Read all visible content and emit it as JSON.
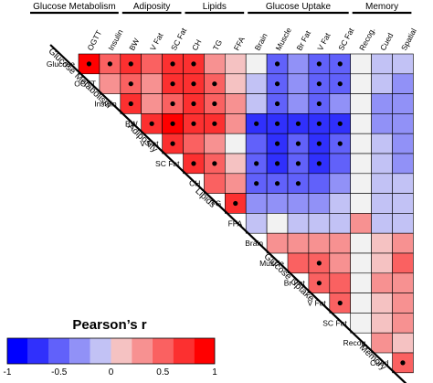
{
  "chart_data": {
    "type": "heatmap",
    "variables": [
      "Glucose",
      "OGTT",
      "Insulin",
      "BW",
      "V Fat",
      "SC Fat",
      "CH",
      "TG",
      "FFA",
      "Brain",
      "Muscle",
      "Br Fat",
      "V Fat",
      "SC Fat",
      "Recog.",
      "Cued",
      "Spatial"
    ],
    "groups": [
      {
        "name": "Glucose Metabolism",
        "vars": [
          "Glucose",
          "OGTT",
          "Insulin"
        ]
      },
      {
        "name": "Adiposity",
        "vars": [
          "BW",
          "V Fat",
          "SC Fat"
        ]
      },
      {
        "name": "Lipids",
        "vars": [
          "CH",
          "TG",
          "FFA"
        ]
      },
      {
        "name": "Glucose Uptake",
        "vars": [
          "Brain",
          "Muscle",
          "Br Fat",
          "V Fat",
          "SC Fat"
        ]
      },
      {
        "name": "Memory",
        "vars": [
          "Recog.",
          "Cued",
          "Spatial"
        ]
      }
    ],
    "cells": [
      {
        "row": "Glucose",
        "col": "OGTT",
        "r": 0.9,
        "sig": true
      },
      {
        "row": "Glucose",
        "col": "Insulin",
        "r": 0.5,
        "sig": true
      },
      {
        "row": "Glucose",
        "col": "BW",
        "r": 0.8,
        "sig": true
      },
      {
        "row": "Glucose",
        "col": "V Fat",
        "r": 0.5,
        "sig": false
      },
      {
        "row": "Glucose",
        "col": "SC Fat",
        "r": 0.8,
        "sig": true
      },
      {
        "row": "Glucose",
        "col": "CH",
        "r": 0.8,
        "sig": true
      },
      {
        "row": "Glucose",
        "col": "TG",
        "r": 0.3,
        "sig": false
      },
      {
        "row": "Glucose",
        "col": "FFA",
        "r": 0.2,
        "sig": false
      },
      {
        "row": "Glucose",
        "col": "Brain",
        "r": 0.0,
        "sig": false
      },
      {
        "row": "Glucose",
        "col": "Muscle",
        "r": -0.6,
        "sig": true
      },
      {
        "row": "Glucose",
        "col": "Br Fat",
        "r": -0.3,
        "sig": false
      },
      {
        "row": "Glucose",
        "col": "V Fat",
        "r": -0.6,
        "sig": true
      },
      {
        "row": "Glucose",
        "col": "SC Fat",
        "r": -0.6,
        "sig": true
      },
      {
        "row": "Glucose",
        "col": "Recog.",
        "r": 0.0,
        "sig": false
      },
      {
        "row": "Glucose",
        "col": "Cued",
        "r": -0.2,
        "sig": false
      },
      {
        "row": "Glucose",
        "col": "Spatial",
        "r": -0.2,
        "sig": false
      },
      {
        "row": "OGTT",
        "col": "Insulin",
        "r": 0.3,
        "sig": false
      },
      {
        "row": "OGTT",
        "col": "BW",
        "r": 0.6,
        "sig": true
      },
      {
        "row": "OGTT",
        "col": "V Fat",
        "r": 0.4,
        "sig": false
      },
      {
        "row": "OGTT",
        "col": "SC Fat",
        "r": 0.7,
        "sig": true
      },
      {
        "row": "OGTT",
        "col": "CH",
        "r": 0.7,
        "sig": true
      },
      {
        "row": "OGTT",
        "col": "TG",
        "r": 0.5,
        "sig": true
      },
      {
        "row": "OGTT",
        "col": "FFA",
        "r": 0.2,
        "sig": false
      },
      {
        "row": "OGTT",
        "col": "Brain",
        "r": -0.1,
        "sig": false
      },
      {
        "row": "OGTT",
        "col": "Muscle",
        "r": -0.6,
        "sig": true
      },
      {
        "row": "OGTT",
        "col": "Br Fat",
        "r": -0.4,
        "sig": false
      },
      {
        "row": "OGTT",
        "col": "V Fat",
        "r": -0.5,
        "sig": true
      },
      {
        "row": "OGTT",
        "col": "SC Fat",
        "r": -0.5,
        "sig": true
      },
      {
        "row": "OGTT",
        "col": "Recog.",
        "r": 0.0,
        "sig": false
      },
      {
        "row": "OGTT",
        "col": "Cued",
        "r": -0.2,
        "sig": false
      },
      {
        "row": "OGTT",
        "col": "Spatial",
        "r": -0.3,
        "sig": false
      },
      {
        "row": "Insulin",
        "col": "BW",
        "r": 0.7,
        "sig": true
      },
      {
        "row": "Insulin",
        "col": "V Fat",
        "r": 0.3,
        "sig": false
      },
      {
        "row": "Insulin",
        "col": "SC Fat",
        "r": 0.6,
        "sig": true
      },
      {
        "row": "Insulin",
        "col": "CH",
        "r": 0.7,
        "sig": true
      },
      {
        "row": "Insulin",
        "col": "TG",
        "r": 0.5,
        "sig": true
      },
      {
        "row": "Insulin",
        "col": "FFA",
        "r": 0.3,
        "sig": false
      },
      {
        "row": "Insulin",
        "col": "Brain",
        "r": -0.2,
        "sig": false
      },
      {
        "row": "Insulin",
        "col": "Muscle",
        "r": -0.5,
        "sig": true
      },
      {
        "row": "Insulin",
        "col": "Br Fat",
        "r": -0.4,
        "sig": false
      },
      {
        "row": "Insulin",
        "col": "V Fat",
        "r": -0.5,
        "sig": true
      },
      {
        "row": "Insulin",
        "col": "SC Fat",
        "r": -0.4,
        "sig": false
      },
      {
        "row": "Insulin",
        "col": "Recog.",
        "r": 0.0,
        "sig": false
      },
      {
        "row": "Insulin",
        "col": "Cued",
        "r": -0.3,
        "sig": false
      },
      {
        "row": "Insulin",
        "col": "Spatial",
        "r": -0.3,
        "sig": false
      },
      {
        "row": "BW",
        "col": "V Fat",
        "r": 0.8,
        "sig": true
      },
      {
        "row": "BW",
        "col": "SC Fat",
        "r": 0.9,
        "sig": true
      },
      {
        "row": "BW",
        "col": "CH",
        "r": 0.8,
        "sig": true
      },
      {
        "row": "BW",
        "col": "TG",
        "r": 0.7,
        "sig": true
      },
      {
        "row": "BW",
        "col": "FFA",
        "r": 0.3,
        "sig": false
      },
      {
        "row": "BW",
        "col": "Brain",
        "r": -0.7,
        "sig": true
      },
      {
        "row": "BW",
        "col": "Muscle",
        "r": -0.8,
        "sig": true
      },
      {
        "row": "BW",
        "col": "Br Fat",
        "r": -0.7,
        "sig": true
      },
      {
        "row": "BW",
        "col": "V Fat",
        "r": -0.8,
        "sig": true
      },
      {
        "row": "BW",
        "col": "SC Fat",
        "r": -0.7,
        "sig": true
      },
      {
        "row": "BW",
        "col": "Recog.",
        "r": 0.0,
        "sig": false
      },
      {
        "row": "BW",
        "col": "Cued",
        "r": -0.3,
        "sig": false
      },
      {
        "row": "BW",
        "col": "Spatial",
        "r": -0.3,
        "sig": false
      },
      {
        "row": "V Fat",
        "col": "SC Fat",
        "r": 0.8,
        "sig": true
      },
      {
        "row": "V Fat",
        "col": "CH",
        "r": 0.5,
        "sig": false
      },
      {
        "row": "V Fat",
        "col": "TG",
        "r": 0.3,
        "sig": false
      },
      {
        "row": "V Fat",
        "col": "FFA",
        "r": 0.0,
        "sig": false
      },
      {
        "row": "V Fat",
        "col": "Brain",
        "r": -0.6,
        "sig": false
      },
      {
        "row": "V Fat",
        "col": "Muscle",
        "r": -0.7,
        "sig": true
      },
      {
        "row": "V Fat",
        "col": "Br Fat",
        "r": -0.6,
        "sig": true
      },
      {
        "row": "V Fat",
        "col": "V Fat",
        "r": -0.7,
        "sig": true
      },
      {
        "row": "V Fat",
        "col": "SC Fat",
        "r": -0.6,
        "sig": true
      },
      {
        "row": "V Fat",
        "col": "Recog.",
        "r": 0.0,
        "sig": false
      },
      {
        "row": "V Fat",
        "col": "Cued",
        "r": -0.2,
        "sig": false
      },
      {
        "row": "V Fat",
        "col": "Spatial",
        "r": -0.3,
        "sig": false
      },
      {
        "row": "SC Fat",
        "col": "CH",
        "r": 0.8,
        "sig": true
      },
      {
        "row": "SC Fat",
        "col": "TG",
        "r": 0.5,
        "sig": true
      },
      {
        "row": "SC Fat",
        "col": "FFA",
        "r": 0.2,
        "sig": false
      },
      {
        "row": "SC Fat",
        "col": "Brain",
        "r": -0.6,
        "sig": true
      },
      {
        "row": "SC Fat",
        "col": "Muscle",
        "r": -0.7,
        "sig": true
      },
      {
        "row": "SC Fat",
        "col": "Br Fat",
        "r": -0.6,
        "sig": true
      },
      {
        "row": "SC Fat",
        "col": "V Fat",
        "r": -0.7,
        "sig": true
      },
      {
        "row": "SC Fat",
        "col": "SC Fat",
        "r": -0.5,
        "sig": false
      },
      {
        "row": "SC Fat",
        "col": "Recog.",
        "r": 0.0,
        "sig": false
      },
      {
        "row": "SC Fat",
        "col": "Cued",
        "r": -0.2,
        "sig": false
      },
      {
        "row": "SC Fat",
        "col": "Spatial",
        "r": -0.3,
        "sig": false
      },
      {
        "row": "CH",
        "col": "TG",
        "r": 0.5,
        "sig": false
      },
      {
        "row": "CH",
        "col": "FFA",
        "r": 0.3,
        "sig": false
      },
      {
        "row": "CH",
        "col": "Brain",
        "r": -0.6,
        "sig": true
      },
      {
        "row": "CH",
        "col": "Muscle",
        "r": -0.6,
        "sig": true
      },
      {
        "row": "CH",
        "col": "Br Fat",
        "r": -0.5,
        "sig": true
      },
      {
        "row": "CH",
        "col": "V Fat",
        "r": -0.6,
        "sig": false
      },
      {
        "row": "CH",
        "col": "SC Fat",
        "r": -0.4,
        "sig": false
      },
      {
        "row": "CH",
        "col": "Recog.",
        "r": 0.0,
        "sig": false
      },
      {
        "row": "CH",
        "col": "Cued",
        "r": -0.2,
        "sig": false
      },
      {
        "row": "CH",
        "col": "Spatial",
        "r": -0.2,
        "sig": false
      },
      {
        "row": "TG",
        "col": "FFA",
        "r": 0.8,
        "sig": true
      },
      {
        "row": "TG",
        "col": "Brain",
        "r": -0.3,
        "sig": false
      },
      {
        "row": "TG",
        "col": "Muscle",
        "r": -0.3,
        "sig": false
      },
      {
        "row": "TG",
        "col": "Br Fat",
        "r": -0.3,
        "sig": false
      },
      {
        "row": "TG",
        "col": "V Fat",
        "r": -0.3,
        "sig": false
      },
      {
        "row": "TG",
        "col": "SC Fat",
        "r": -0.2,
        "sig": false
      },
      {
        "row": "TG",
        "col": "Recog.",
        "r": 0.0,
        "sig": false
      },
      {
        "row": "TG",
        "col": "Cued",
        "r": -0.1,
        "sig": false
      },
      {
        "row": "TG",
        "col": "Spatial",
        "r": -0.2,
        "sig": false
      },
      {
        "row": "FFA",
        "col": "Brain",
        "r": -0.2,
        "sig": false
      },
      {
        "row": "FFA",
        "col": "Muscle",
        "r": 0.0,
        "sig": false
      },
      {
        "row": "FFA",
        "col": "Br Fat",
        "r": -0.1,
        "sig": false
      },
      {
        "row": "FFA",
        "col": "V Fat",
        "r": -0.2,
        "sig": false
      },
      {
        "row": "FFA",
        "col": "SC Fat",
        "r": -0.1,
        "sig": false
      },
      {
        "row": "FFA",
        "col": "Recog.",
        "r": 0.3,
        "sig": false
      },
      {
        "row": "FFA",
        "col": "Cued",
        "r": -0.2,
        "sig": false
      },
      {
        "row": "FFA",
        "col": "Spatial",
        "r": -0.2,
        "sig": false
      },
      {
        "row": "Brain",
        "col": "Muscle",
        "r": 0.3,
        "sig": false
      },
      {
        "row": "Brain",
        "col": "Br Fat",
        "r": 0.3,
        "sig": false
      },
      {
        "row": "Brain",
        "col": "V Fat",
        "r": 0.3,
        "sig": false
      },
      {
        "row": "Brain",
        "col": "SC Fat",
        "r": 0.3,
        "sig": false
      },
      {
        "row": "Brain",
        "col": "Recog.",
        "r": 0.0,
        "sig": false
      },
      {
        "row": "Brain",
        "col": "Cued",
        "r": 0.2,
        "sig": false
      },
      {
        "row": "Brain",
        "col": "Spatial",
        "r": 0.4,
        "sig": false
      },
      {
        "row": "Muscle",
        "col": "Br Fat",
        "r": 0.5,
        "sig": false
      },
      {
        "row": "Muscle",
        "col": "V Fat",
        "r": 0.6,
        "sig": true
      },
      {
        "row": "Muscle",
        "col": "SC Fat",
        "r": 0.4,
        "sig": false
      },
      {
        "row": "Muscle",
        "col": "Recog.",
        "r": 0.0,
        "sig": false
      },
      {
        "row": "Muscle",
        "col": "Cued",
        "r": 0.2,
        "sig": false
      },
      {
        "row": "Muscle",
        "col": "Spatial",
        "r": 0.6,
        "sig": false
      },
      {
        "row": "Br Fat",
        "col": "V Fat",
        "r": 0.6,
        "sig": true
      },
      {
        "row": "Br Fat",
        "col": "SC Fat",
        "r": 0.5,
        "sig": false
      },
      {
        "row": "Br Fat",
        "col": "Recog.",
        "r": 0.0,
        "sig": false
      },
      {
        "row": "Br Fat",
        "col": "Cued",
        "r": 0.3,
        "sig": false
      },
      {
        "row": "Br Fat",
        "col": "Spatial",
        "r": 0.3,
        "sig": false
      },
      {
        "row": "V Fat",
        "col": "SC Fat",
        "r": 0.6,
        "sig": true
      },
      {
        "row": "V Fat",
        "col": "Recog.",
        "r": 0.0,
        "sig": false
      },
      {
        "row": "V Fat",
        "col": "Cued",
        "r": 0.2,
        "sig": false
      },
      {
        "row": "V Fat",
        "col": "Spatial",
        "r": 0.4,
        "sig": false
      },
      {
        "row": "SC Fat",
        "col": "Recog.",
        "r": 0.0,
        "sig": false
      },
      {
        "row": "SC Fat",
        "col": "Cued",
        "r": 0.1,
        "sig": false
      },
      {
        "row": "SC Fat",
        "col": "Spatial",
        "r": 0.3,
        "sig": false
      },
      {
        "row": "Recog.",
        "col": "Cued",
        "r": 0.3,
        "sig": false
      },
      {
        "row": "Recog.",
        "col": "Spatial",
        "r": 0.1,
        "sig": false
      },
      {
        "row": "Cued",
        "col": "Spatial",
        "r": 0.6,
        "sig": true
      }
    ],
    "legend": {
      "title": "Pearson’s r",
      "ticks": [
        "-1",
        "-0.5",
        "0",
        "0.5",
        "1"
      ],
      "range": [
        -1,
        1
      ],
      "steps": 10
    },
    "colors": {
      "negative": "#0000ff",
      "neutral": "#f2f2f2",
      "positive": "#ff0000"
    },
    "significance_marker": "dot"
  }
}
